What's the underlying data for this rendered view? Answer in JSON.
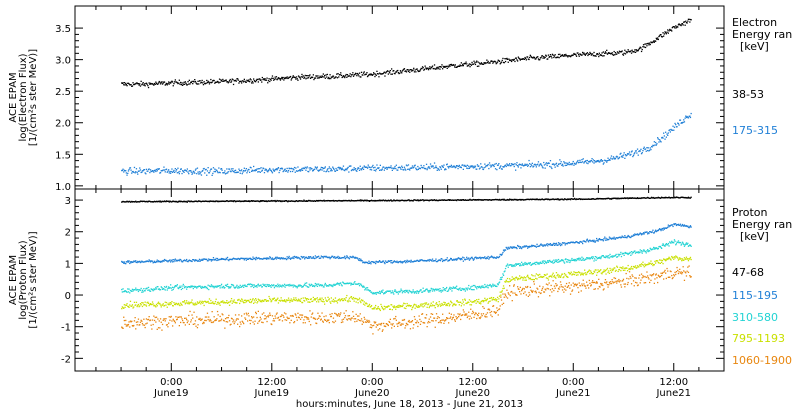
{
  "xaxis": {
    "title": "hours:minutes, June 18, 2013 - June 21, 2013",
    "ticks": [
      {
        "t": 6,
        "time": "0:00",
        "date": "June19"
      },
      {
        "t": 18,
        "time": "12:00",
        "date": "June19"
      },
      {
        "t": 30,
        "time": "0:00",
        "date": "June20"
      },
      {
        "t": 42,
        "time": "12:00",
        "date": "June20"
      },
      {
        "t": 54,
        "time": "0:00",
        "date": "June21"
      },
      {
        "t": 66,
        "time": "12:00",
        "date": "June21"
      }
    ]
  },
  "chart_data": [
    {
      "type": "scatter",
      "ylabel": [
        "ACE EPAM",
        "log(Electron Flux)",
        "[1/(cm²s ster MeV)]"
      ],
      "ylim": [
        0.95,
        3.85
      ],
      "yticks": [
        1.0,
        1.5,
        2.0,
        2.5,
        3.0,
        3.5
      ],
      "ytick_labels": [
        "1.0",
        "1.5",
        "2.0",
        "2.5",
        "3.0",
        "3.5"
      ],
      "legend_title": [
        "Electron",
        "Energy ran",
        "[keV]"
      ],
      "series": [
        {
          "name": "38-53",
          "color": "#000000",
          "scatter": 0.035,
          "points": [
            [
              0,
              2.62
            ],
            [
              3,
              2.62
            ],
            [
              6,
              2.64
            ],
            [
              9,
              2.65
            ],
            [
              12,
              2.66
            ],
            [
              15,
              2.68
            ],
            [
              18,
              2.7
            ],
            [
              21,
              2.73
            ],
            [
              26,
              2.75
            ],
            [
              30,
              2.78
            ],
            [
              33,
              2.82
            ],
            [
              36,
              2.86
            ],
            [
              40,
              2.92
            ],
            [
              43,
              2.95
            ],
            [
              45,
              2.98
            ],
            [
              48,
              3.02
            ],
            [
              51,
              3.05
            ],
            [
              54,
              3.08
            ],
            [
              57,
              3.1
            ],
            [
              60,
              3.12
            ],
            [
              62,
              3.18
            ],
            [
              64,
              3.35
            ],
            [
              66,
              3.52
            ],
            [
              68,
              3.64
            ]
          ]
        },
        {
          "name": "175-315",
          "color": "#1f7fd6",
          "scatter": 0.045,
          "points": [
            [
              0,
              1.24
            ],
            [
              6,
              1.25
            ],
            [
              12,
              1.24
            ],
            [
              18,
              1.27
            ],
            [
              24,
              1.27
            ],
            [
              30,
              1.29
            ],
            [
              36,
              1.3
            ],
            [
              42,
              1.32
            ],
            [
              48,
              1.33
            ],
            [
              54,
              1.37
            ],
            [
              58,
              1.42
            ],
            [
              61,
              1.52
            ],
            [
              63,
              1.62
            ],
            [
              65,
              1.82
            ],
            [
              67,
              2.05
            ],
            [
              68,
              2.15
            ]
          ]
        }
      ]
    },
    {
      "type": "scatter",
      "ylabel": [
        "ACE EPAM",
        "log(Proton Flux)",
        "[1/(cm²s ster MeV)]"
      ],
      "ylim": [
        -2.4,
        3.35
      ],
      "yticks": [
        -2,
        -1,
        0,
        1,
        2,
        3
      ],
      "ytick_labels": [
        "-2",
        "-1",
        "0",
        "1",
        "2",
        "3"
      ],
      "legend_title": [
        "Proton",
        "Energy ran",
        "[keV]"
      ],
      "series": [
        {
          "name": "47-68",
          "color": "#000000",
          "scatter": 0.015,
          "points": [
            [
              0,
              2.97
            ],
            [
              20,
              2.99
            ],
            [
              40,
              3.02
            ],
            [
              55,
              3.05
            ],
            [
              65,
              3.1
            ],
            [
              68,
              3.1
            ]
          ]
        },
        {
          "name": "115-195",
          "color": "#1f7fd6",
          "scatter": 0.04,
          "points": [
            [
              0,
              1.05
            ],
            [
              6,
              1.1
            ],
            [
              12,
              1.15
            ],
            [
              18,
              1.18
            ],
            [
              24,
              1.22
            ],
            [
              28,
              1.2
            ],
            [
              29,
              1.05
            ],
            [
              34,
              1.08
            ],
            [
              40,
              1.15
            ],
            [
              45,
              1.22
            ],
            [
              46,
              1.5
            ],
            [
              50,
              1.58
            ],
            [
              55,
              1.7
            ],
            [
              60,
              1.85
            ],
            [
              64,
              2.05
            ],
            [
              66,
              2.25
            ],
            [
              68,
              2.18
            ]
          ]
        },
        {
          "name": "310-580",
          "color": "#22d3d3",
          "scatter": 0.06,
          "points": [
            [
              0,
              0.15
            ],
            [
              6,
              0.25
            ],
            [
              12,
              0.3
            ],
            [
              18,
              0.32
            ],
            [
              24,
              0.32
            ],
            [
              28,
              0.4
            ],
            [
              30,
              0.1
            ],
            [
              36,
              0.15
            ],
            [
              42,
              0.25
            ],
            [
              45,
              0.35
            ],
            [
              46,
              0.95
            ],
            [
              50,
              1.05
            ],
            [
              55,
              1.15
            ],
            [
              60,
              1.3
            ],
            [
              64,
              1.5
            ],
            [
              66,
              1.7
            ],
            [
              68,
              1.6
            ]
          ]
        },
        {
          "name": "795-1193",
          "color": "#c9e000",
          "scatter": 0.08,
          "points": [
            [
              0,
              -0.3
            ],
            [
              6,
              -0.25
            ],
            [
              12,
              -0.2
            ],
            [
              18,
              -0.15
            ],
            [
              24,
              -0.15
            ],
            [
              28,
              -0.1
            ],
            [
              30,
              -0.4
            ],
            [
              36,
              -0.3
            ],
            [
              42,
              -0.2
            ],
            [
              45,
              -0.1
            ],
            [
              46,
              0.5
            ],
            [
              50,
              0.6
            ],
            [
              55,
              0.7
            ],
            [
              60,
              0.85
            ],
            [
              64,
              1.05
            ],
            [
              66,
              1.2
            ],
            [
              68,
              1.15
            ]
          ]
        },
        {
          "name": "1060-1900",
          "color": "#e8860f",
          "scatter": 0.18,
          "points": [
            [
              0,
              -0.85
            ],
            [
              6,
              -0.8
            ],
            [
              12,
              -0.75
            ],
            [
              18,
              -0.7
            ],
            [
              24,
              -0.7
            ],
            [
              28,
              -0.65
            ],
            [
              30,
              -0.95
            ],
            [
              36,
              -0.8
            ],
            [
              42,
              -0.6
            ],
            [
              45,
              -0.45
            ],
            [
              46,
              0.1
            ],
            [
              50,
              0.2
            ],
            [
              55,
              0.3
            ],
            [
              60,
              0.45
            ],
            [
              64,
              0.6
            ],
            [
              66,
              0.75
            ],
            [
              68,
              0.7
            ]
          ]
        }
      ]
    }
  ]
}
